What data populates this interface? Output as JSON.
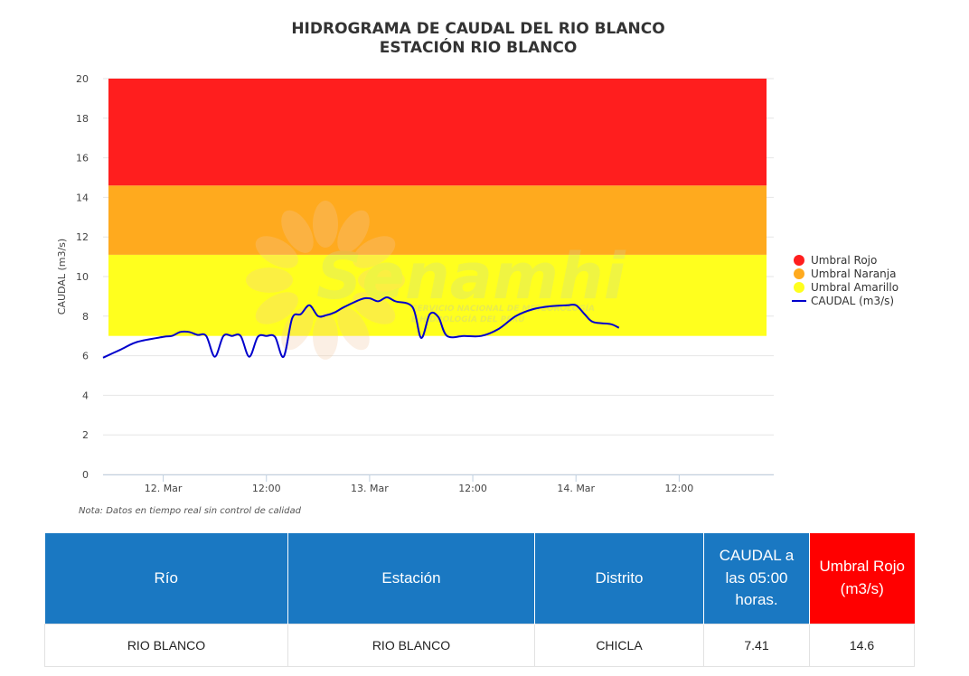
{
  "chart_data": {
    "type": "line",
    "title": "HIDROGRAMA DE CAUDAL DEL RIO BLANCO",
    "subtitle": "ESTACIÓN RIO BLANCO",
    "ylabel": "CAUDAL (m3/s)",
    "xlabel": "",
    "ylim": [
      0,
      20
    ],
    "yticks": [
      0,
      2,
      4,
      6,
      8,
      10,
      12,
      14,
      16,
      18,
      20
    ],
    "xlim": [
      "2025-03-11T17:00",
      "2025-03-14T23:00"
    ],
    "xticks": [
      {
        "value": "2025-03-12T00:00",
        "label": "12. Mar"
      },
      {
        "value": "2025-03-12T12:00",
        "label": "12:00"
      },
      {
        "value": "2025-03-13T00:00",
        "label": "13. Mar"
      },
      {
        "value": "2025-03-13T12:00",
        "label": "12:00"
      },
      {
        "value": "2025-03-14T00:00",
        "label": "14. Mar"
      },
      {
        "value": "2025-03-14T12:00",
        "label": "12:00"
      }
    ],
    "grid": true,
    "legend_position": "right",
    "bands": [
      {
        "name": "Umbral Amarillo",
        "from": 7.0,
        "to": 11.1,
        "color": "#ffff1e"
      },
      {
        "name": "Umbral Naranja",
        "from": 11.1,
        "to": 14.6,
        "color": "#ffaa1e"
      },
      {
        "name": "Umbral Rojo",
        "from": 14.6,
        "to": 20.0,
        "color": "#ff1e1e"
      }
    ],
    "series": [
      {
        "name": "CAUDAL (m3/s)",
        "color": "#0000cc",
        "points": [
          [
            "2025-03-11T17:00",
            5.9
          ],
          [
            "2025-03-11T19:00",
            6.3
          ],
          [
            "2025-03-11T21:00",
            6.7
          ],
          [
            "2025-03-12T00:00",
            6.95
          ],
          [
            "2025-03-12T01:00",
            7.0
          ],
          [
            "2025-03-12T02:00",
            7.2
          ],
          [
            "2025-03-12T03:00",
            7.2
          ],
          [
            "2025-03-12T04:00",
            7.05
          ],
          [
            "2025-03-12T05:00",
            7.0
          ],
          [
            "2025-03-12T06:00",
            5.95
          ],
          [
            "2025-03-12T07:00",
            7.0
          ],
          [
            "2025-03-12T08:00",
            7.0
          ],
          [
            "2025-03-12T09:00",
            7.0
          ],
          [
            "2025-03-12T10:00",
            5.95
          ],
          [
            "2025-03-12T11:00",
            6.95
          ],
          [
            "2025-03-12T12:00",
            7.0
          ],
          [
            "2025-03-12T13:00",
            6.95
          ],
          [
            "2025-03-12T14:00",
            5.95
          ],
          [
            "2025-03-12T15:00",
            7.9
          ],
          [
            "2025-03-12T16:00",
            8.1
          ],
          [
            "2025-03-12T17:00",
            8.55
          ],
          [
            "2025-03-12T18:00",
            8.0
          ],
          [
            "2025-03-12T19:00",
            8.05
          ],
          [
            "2025-03-12T20:00",
            8.2
          ],
          [
            "2025-03-12T21:00",
            8.45
          ],
          [
            "2025-03-12T23:00",
            8.85
          ],
          [
            "2025-03-13T00:00",
            8.9
          ],
          [
            "2025-03-13T01:00",
            8.75
          ],
          [
            "2025-03-13T02:00",
            8.95
          ],
          [
            "2025-03-13T03:00",
            8.75
          ],
          [
            "2025-03-13T05:00",
            8.45
          ],
          [
            "2025-03-13T06:00",
            6.9
          ],
          [
            "2025-03-13T07:00",
            8.1
          ],
          [
            "2025-03-13T08:00",
            7.95
          ],
          [
            "2025-03-13T09:00",
            7.0
          ],
          [
            "2025-03-13T11:00",
            7.0
          ],
          [
            "2025-03-13T13:00",
            7.0
          ],
          [
            "2025-03-13T15:00",
            7.35
          ],
          [
            "2025-03-13T17:00",
            8.0
          ],
          [
            "2025-03-13T19:00",
            8.35
          ],
          [
            "2025-03-13T21:00",
            8.5
          ],
          [
            "2025-03-13T23:00",
            8.55
          ],
          [
            "2025-03-14T00:00",
            8.55
          ],
          [
            "2025-03-14T01:00",
            8.1
          ],
          [
            "2025-03-14T02:00",
            7.7
          ],
          [
            "2025-03-14T04:00",
            7.6
          ],
          [
            "2025-03-14T05:00",
            7.41
          ]
        ]
      }
    ],
    "legend": [
      {
        "label": "Umbral Rojo",
        "color": "#ff1e1e",
        "symbol": "circle"
      },
      {
        "label": "Umbral Naranja",
        "color": "#ffaa1e",
        "symbol": "circle"
      },
      {
        "label": "Umbral Amarillo",
        "color": "#ffff1e",
        "symbol": "circle"
      },
      {
        "label": "CAUDAL (m3/s)",
        "color": "#0000cc",
        "symbol": "line"
      }
    ],
    "note": "Nota: Datos en tiempo real sin control de calidad",
    "watermark": {
      "logo_text": "Senamhi",
      "line1": "SERVICIO NACIONAL DE METEOROLOGÍA",
      "line2": "E HIDROLOGÍA DEL PERÚ"
    }
  },
  "table": {
    "headers": [
      {
        "label": "Río",
        "color": "#1a78c2"
      },
      {
        "label": "Estación",
        "color": "#1a78c2"
      },
      {
        "label": "Distrito",
        "color": "#1a78c2"
      },
      {
        "label": "CAUDAL a las 05:00 horas.",
        "color": "#1a78c2"
      },
      {
        "label": "Umbral Rojo (m3/s)",
        "color": "#ff0000"
      }
    ],
    "rows": [
      [
        "RIO BLANCO",
        "RIO BLANCO",
        "CHICLA",
        "7.41",
        "14.6"
      ]
    ]
  }
}
